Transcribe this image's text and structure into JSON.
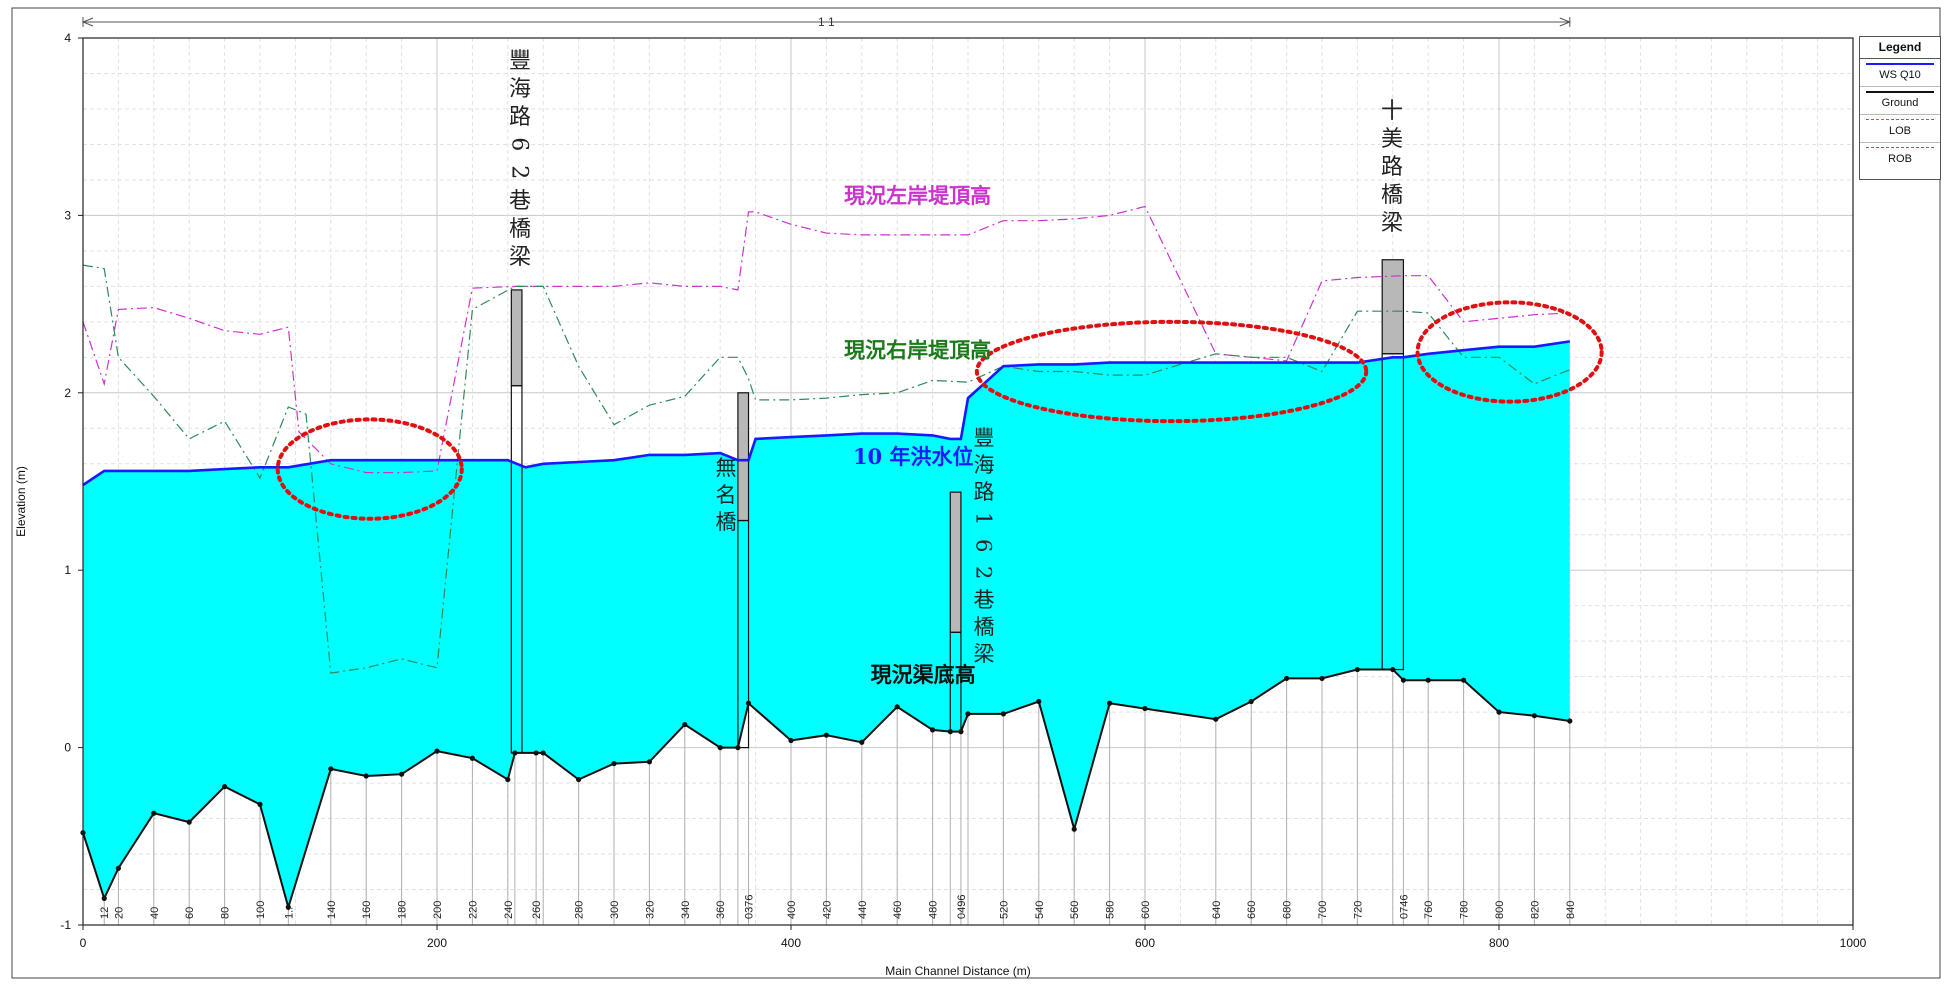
{
  "chart_data": {
    "type": "area",
    "xlabel": "Main Channel Distance (m)",
    "ylabel": "Elevation (m)",
    "xlim": [
      0,
      1000
    ],
    "ylim": [
      -1,
      4
    ],
    "x_ticks": [
      0,
      200,
      400,
      600,
      800,
      1000
    ],
    "y_ticks": [
      -1,
      0,
      1,
      2,
      3,
      4
    ],
    "grid": true,
    "legend_position": "right",
    "top_bracket_label": "1 1",
    "legend": {
      "title": "Legend",
      "items": [
        {
          "name": "WS Q10",
          "color": "#1a1aff",
          "style": "solid"
        },
        {
          "name": "Ground",
          "color": "#111111",
          "style": "solid-markers"
        },
        {
          "name": "LOB",
          "color": "#cc33cc",
          "style": "dash-dot"
        },
        {
          "name": "ROB",
          "color": "#2e8b57",
          "style": "dash-dot"
        }
      ]
    },
    "station_labels": [
      "12",
      "20",
      "40",
      "60",
      "80",
      "100",
      "1..",
      "140",
      "160",
      "180",
      "200",
      "220",
      "240",
      "260",
      "280",
      "300",
      "320",
      "340",
      "360",
      "0376",
      "400",
      "420",
      "440",
      "460",
      "480",
      "0496",
      "520",
      "540",
      "560",
      "580",
      "600",
      "640",
      "660",
      "680",
      "700",
      "720",
      "0746",
      "760",
      "780",
      "800",
      "820",
      "840"
    ],
    "series": [
      {
        "name": "WS Q10",
        "color": "#1a1aff",
        "x": [
          0,
          12,
          20,
          40,
          60,
          80,
          100,
          116,
          140,
          160,
          180,
          200,
          220,
          240,
          250,
          260,
          280,
          300,
          320,
          340,
          360,
          370,
          376,
          380,
          400,
          420,
          440,
          460,
          480,
          490,
          496,
          500,
          520,
          540,
          560,
          580,
          600,
          640,
          660,
          680,
          700,
          720,
          740,
          746,
          760,
          780,
          800,
          820,
          840
        ],
        "y": [
          1.48,
          1.56,
          1.56,
          1.56,
          1.56,
          1.57,
          1.58,
          1.58,
          1.62,
          1.62,
          1.62,
          1.62,
          1.62,
          1.62,
          1.58,
          1.6,
          1.61,
          1.62,
          1.65,
          1.65,
          1.66,
          1.62,
          1.62,
          1.74,
          1.75,
          1.76,
          1.77,
          1.77,
          1.76,
          1.74,
          1.74,
          1.97,
          2.15,
          2.16,
          2.16,
          2.17,
          2.17,
          2.17,
          2.17,
          2.17,
          2.17,
          2.17,
          2.2,
          2.2,
          2.22,
          2.24,
          2.26,
          2.26,
          2.29
        ]
      },
      {
        "name": "Ground",
        "color": "#111111",
        "x": [
          0,
          12,
          20,
          40,
          60,
          80,
          100,
          116,
          140,
          160,
          180,
          200,
          220,
          240,
          244,
          256,
          260,
          280,
          300,
          320,
          340,
          360,
          370,
          376,
          400,
          420,
          440,
          460,
          480,
          490,
          496,
          500,
          520,
          540,
          560,
          580,
          600,
          640,
          660,
          680,
          700,
          720,
          740,
          746,
          760,
          780,
          800,
          820,
          840
        ],
        "y": [
          -0.48,
          -0.85,
          -0.68,
          -0.37,
          -0.42,
          -0.22,
          -0.32,
          -0.9,
          -0.12,
          -0.16,
          -0.15,
          -0.02,
          -0.06,
          -0.18,
          -0.03,
          -0.03,
          -0.03,
          -0.18,
          -0.09,
          -0.08,
          0.13,
          0.0,
          0.0,
          0.25,
          0.04,
          0.07,
          0.03,
          0.23,
          0.1,
          0.09,
          0.09,
          0.19,
          0.19,
          0.26,
          -0.46,
          0.25,
          0.22,
          0.16,
          0.26,
          0.39,
          0.39,
          0.44,
          0.44,
          0.38,
          0.38,
          0.38,
          0.2,
          0.18,
          0.15
        ]
      },
      {
        "name": "LOB",
        "color": "#cc33cc",
        "x": [
          0,
          12,
          20,
          40,
          60,
          80,
          100,
          116,
          122,
          140,
          160,
          180,
          200,
          220,
          244,
          260,
          280,
          300,
          320,
          340,
          360,
          370,
          376,
          380,
          400,
          420,
          440,
          460,
          480,
          500,
          520,
          540,
          560,
          580,
          600,
          640,
          660,
          680,
          700,
          720,
          746,
          760,
          780,
          800,
          820,
          840
        ],
        "y": [
          2.4,
          2.05,
          2.47,
          2.48,
          2.42,
          2.35,
          2.33,
          2.37,
          1.78,
          1.6,
          1.55,
          1.55,
          1.56,
          2.59,
          2.6,
          2.6,
          2.6,
          2.6,
          2.62,
          2.6,
          2.6,
          2.58,
          3.02,
          3.02,
          2.95,
          2.9,
          2.89,
          2.89,
          2.89,
          2.89,
          2.97,
          2.97,
          2.98,
          3.0,
          3.05,
          2.22,
          2.2,
          2.18,
          2.63,
          2.65,
          2.66,
          2.66,
          2.4,
          2.42,
          2.44,
          2.45
        ]
      },
      {
        "name": "ROB",
        "color": "#2e8b57",
        "x": [
          0,
          12,
          20,
          40,
          60,
          80,
          100,
          116,
          126,
          140,
          160,
          180,
          200,
          220,
          244,
          260,
          280,
          300,
          320,
          340,
          360,
          370,
          376,
          380,
          400,
          420,
          440,
          460,
          480,
          500,
          520,
          540,
          560,
          580,
          600,
          640,
          660,
          680,
          700,
          720,
          746,
          760,
          780,
          800,
          820,
          840
        ],
        "y": [
          2.72,
          2.7,
          2.2,
          1.98,
          1.74,
          1.84,
          1.52,
          1.92,
          1.88,
          0.42,
          0.45,
          0.5,
          0.45,
          2.47,
          2.6,
          2.6,
          2.15,
          1.82,
          1.93,
          1.98,
          2.2,
          2.2,
          2.08,
          1.96,
          1.96,
          1.97,
          1.99,
          2.0,
          2.07,
          2.06,
          2.15,
          2.12,
          2.12,
          2.1,
          2.1,
          2.22,
          2.2,
          2.2,
          2.12,
          2.46,
          2.46,
          2.45,
          2.2,
          2.2,
          2.05,
          2.13
        ]
      }
    ],
    "bridges": [
      {
        "label": "豐海路62巷橋梁",
        "x_start": 242,
        "x_end": 248,
        "top": 2.58,
        "bottom": -0.03,
        "deck_bottom": 2.04
      },
      {
        "label": "無名橋",
        "x_start": 370,
        "x_end": 376,
        "top": 2.0,
        "bottom": 0.0,
        "deck_bottom": 1.28
      },
      {
        "label": "豐海路162巷橋梁",
        "x_start": 490,
        "x_end": 496,
        "top": 1.44,
        "bottom": 0.09,
        "deck_bottom": 0.65
      },
      {
        "label": "十美路橋梁",
        "x_start": 734,
        "x_end": 746,
        "top": 2.75,
        "bottom": 0.44,
        "deck_bottom": 2.22
      }
    ],
    "annotations": [
      {
        "text": "現況左岸堤頂高",
        "color": "#cc33cc",
        "x": 430,
        "y": 3.07
      },
      {
        "text": "現況右岸堤頂高",
        "color": "#1a7a1a",
        "x": 430,
        "y": 2.2
      },
      {
        "text": "10 年洪水位",
        "color": "#1a1aff",
        "x": 435,
        "y": 1.6
      },
      {
        "text": "現況渠底高",
        "color": "#111111",
        "x": 445,
        "y": 0.37
      }
    ],
    "highlight_ellipses": [
      {
        "cx": 162,
        "cy": 1.57,
        "rx": 52,
        "ry": 0.28
      },
      {
        "cx": 615,
        "cy": 2.12,
        "rx": 110,
        "ry": 0.28
      },
      {
        "cx": 806,
        "cy": 2.23,
        "rx": 52,
        "ry": 0.28
      }
    ]
  }
}
